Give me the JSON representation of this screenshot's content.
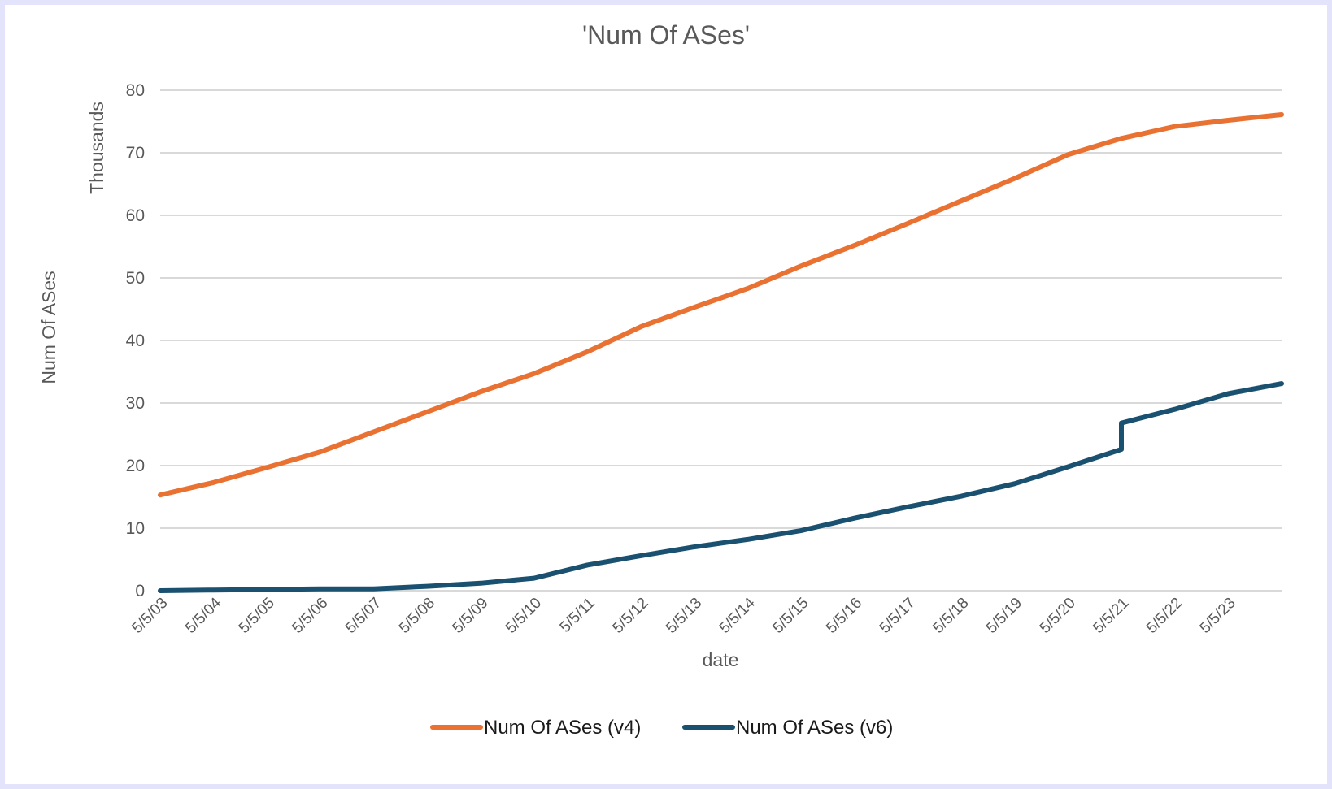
{
  "chart_data": {
    "type": "line",
    "title": "'Num Of ASes'",
    "xlabel": "date",
    "ylabel": "Num Of ASes",
    "y_units_label": "Thousands",
    "ylim": [
      0,
      80
    ],
    "yticks": [
      0,
      10,
      20,
      30,
      40,
      50,
      60,
      70,
      80
    ],
    "x_tick_labels": [
      "5/5/03",
      "5/5/04",
      "5/5/05",
      "5/5/06",
      "5/5/07",
      "5/5/08",
      "5/5/09",
      "5/5/10",
      "5/5/11",
      "5/5/12",
      "5/5/13",
      "5/5/14",
      "5/5/15",
      "5/5/16",
      "5/5/17",
      "5/5/18",
      "5/5/19",
      "5/5/20",
      "5/5/21",
      "5/5/22",
      "5/5/23"
    ],
    "x_range": [
      "5/5/03",
      "5/5/24"
    ],
    "grid": true,
    "legend_position": "bottom",
    "series": [
      {
        "name": "Num Of ASes (v4)",
        "color": "#e97132",
        "x": [
          "5/5/03",
          "5/5/04",
          "5/5/05",
          "5/5/06",
          "5/5/07",
          "5/5/08",
          "5/5/09",
          "5/5/10",
          "5/5/11",
          "5/5/12",
          "5/5/13",
          "5/5/14",
          "5/5/15",
          "5/5/16",
          "5/5/17",
          "5/5/18",
          "5/5/19",
          "5/5/20",
          "5/5/21",
          "5/5/22",
          "5/5/23",
          "5/5/24"
        ],
        "values": [
          15.3,
          17.3,
          19.7,
          22.2,
          25.4,
          28.6,
          31.8,
          34.7,
          38.2,
          42.2,
          45.3,
          48.3,
          51.9,
          55.2,
          58.7,
          62.3,
          65.9,
          69.7,
          72.3,
          74.2,
          75.2,
          76.1
        ]
      },
      {
        "name": "Num Of ASes (v6)",
        "color": "#1a5170",
        "x": [
          "5/5/03",
          "5/5/04",
          "5/5/05",
          "5/5/06",
          "5/5/07",
          "5/5/08",
          "5/5/09",
          "5/5/10",
          "5/5/11",
          "5/5/12",
          "5/5/13",
          "5/5/14",
          "5/5/15",
          "5/5/16",
          "5/5/17",
          "5/5/18",
          "5/5/19",
          "5/5/20",
          "5/5/21",
          "5/5/21",
          "5/5/22",
          "5/5/23",
          "5/5/24"
        ],
        "values": [
          0.0,
          0.1,
          0.2,
          0.3,
          0.3,
          0.7,
          1.2,
          2.0,
          4.1,
          5.6,
          7.0,
          8.2,
          9.6,
          11.6,
          13.4,
          15.1,
          17.1,
          19.8,
          22.6,
          26.8,
          29.0,
          31.5,
          33.1
        ]
      }
    ]
  }
}
